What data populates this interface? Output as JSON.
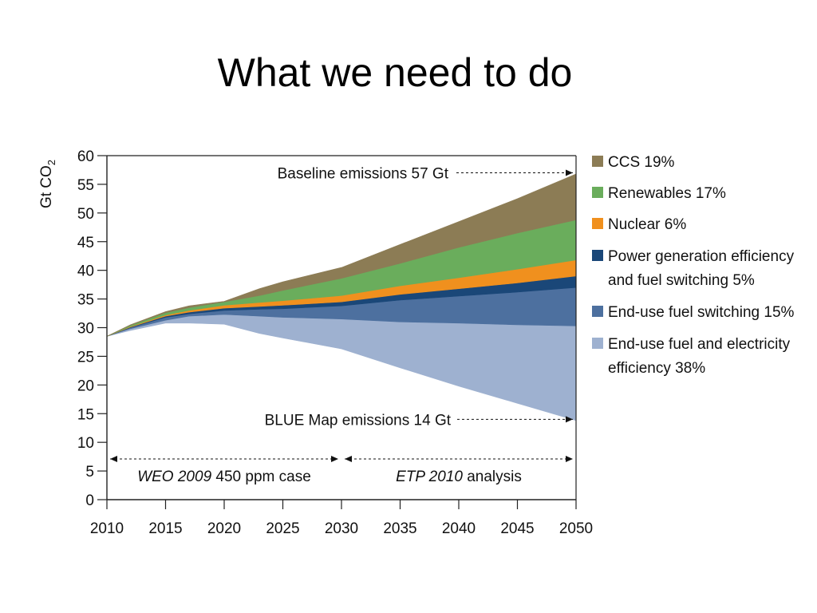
{
  "slide": {
    "title": "What we need to do"
  },
  "colors": {
    "ccs": "#8c7c55",
    "renewables": "#6aad5c",
    "nuclear": "#f0901e",
    "power_generation": "#1a4778",
    "end_use_switching": "#4d709f",
    "end_use_efficiency": "#9eb1d0"
  },
  "chart_data": {
    "type": "area",
    "ylabel": "Gt CO",
    "ylabel_sub": "2",
    "ylim": [
      0,
      60
    ],
    "xlim": [
      2010,
      2050
    ],
    "y_ticks": [
      0,
      5,
      10,
      15,
      20,
      25,
      30,
      35,
      40,
      45,
      50,
      55,
      60
    ],
    "x_ticks": [
      2010,
      2015,
      2020,
      2025,
      2030,
      2035,
      2040,
      2045,
      2050
    ],
    "x": [
      2010,
      2012,
      2015,
      2017,
      2020,
      2023,
      2025,
      2030,
      2035,
      2040,
      2045,
      2050
    ],
    "series": [
      {
        "name": "End-use fuel and electricity efficiency 38%",
        "key": "end_use_efficiency",
        "lower": [
          28.5,
          29.5,
          30.8,
          30.8,
          30.6,
          29.0,
          28.2,
          26.3,
          23.0,
          19.8,
          16.8,
          13.8
        ],
        "upper": [
          28.5,
          29.8,
          31.3,
          32.0,
          32.3,
          32.0,
          31.8,
          31.5,
          31.0,
          30.8,
          30.5,
          30.3
        ]
      },
      {
        "name": "End-use fuel switching 15%",
        "key": "end_use_switching",
        "lower": [
          28.5,
          29.8,
          31.3,
          32.0,
          32.3,
          32.0,
          31.8,
          31.5,
          31.0,
          30.8,
          30.5,
          30.3
        ],
        "upper": [
          28.5,
          30.0,
          31.8,
          32.4,
          33.0,
          33.2,
          33.3,
          33.8,
          34.8,
          35.5,
          36.2,
          37.0
        ]
      },
      {
        "name": "Power generation efficiency and fuel switching 5%",
        "key": "power_generation",
        "lower": [
          28.5,
          30.0,
          31.8,
          32.4,
          33.0,
          33.2,
          33.3,
          33.8,
          34.8,
          35.5,
          36.2,
          37.0
        ],
        "upper": [
          28.5,
          30.1,
          32.0,
          32.7,
          33.4,
          33.7,
          33.9,
          34.5,
          35.8,
          36.8,
          37.8,
          39.0
        ]
      },
      {
        "name": "Nuclear 6%",
        "key": "nuclear",
        "lower": [
          28.5,
          30.1,
          32.0,
          32.7,
          33.4,
          33.7,
          33.9,
          34.5,
          35.8,
          36.8,
          37.8,
          39.0
        ],
        "upper": [
          28.5,
          30.2,
          32.2,
          33.0,
          33.9,
          34.4,
          34.7,
          35.6,
          37.3,
          38.7,
          40.2,
          41.8
        ]
      },
      {
        "name": "Renewables 17%",
        "key": "renewables",
        "lower": [
          28.5,
          30.2,
          32.2,
          33.0,
          33.9,
          34.4,
          34.7,
          35.6,
          37.3,
          38.7,
          40.2,
          41.8
        ],
        "upper": [
          28.5,
          30.4,
          32.6,
          33.5,
          34.5,
          35.6,
          36.5,
          38.6,
          41.2,
          44.0,
          46.5,
          48.8
        ]
      },
      {
        "name": "CCS 19%",
        "key": "ccs",
        "lower": [
          28.5,
          30.4,
          32.6,
          33.5,
          34.5,
          35.6,
          36.5,
          38.6,
          41.2,
          44.0,
          46.5,
          48.8
        ],
        "upper": [
          28.5,
          30.5,
          32.8,
          33.8,
          34.6,
          36.8,
          38.0,
          40.5,
          44.5,
          48.5,
          52.5,
          56.8
        ]
      }
    ],
    "annotations": {
      "baseline": {
        "text": "Baseline emissions 57 Gt",
        "y": 57
      },
      "blue_map": {
        "text": "BLUE Map emissions 14 Gt",
        "y": 14
      },
      "weo": {
        "italic": "WEO 2009",
        "rest": " 450 ppm case",
        "from": 2010,
        "to": 2030
      },
      "etp": {
        "italic": "ETP 2010",
        "rest": " analysis",
        "from": 2030,
        "to": 2050
      }
    },
    "legend": [
      {
        "key": "ccs",
        "lines": [
          "CCS 19%"
        ]
      },
      {
        "key": "renewables",
        "lines": [
          "Renewables 17%"
        ]
      },
      {
        "key": "nuclear",
        "lines": [
          "Nuclear 6%"
        ]
      },
      {
        "key": "power_generation",
        "lines": [
          "Power generation efficiency",
          "and fuel switching 5%"
        ]
      },
      {
        "key": "end_use_switching",
        "lines": [
          "End-use fuel switching 15%"
        ]
      },
      {
        "key": "end_use_efficiency",
        "lines": [
          "End-use fuel and electricity",
          "efficiency 38%"
        ]
      }
    ]
  }
}
